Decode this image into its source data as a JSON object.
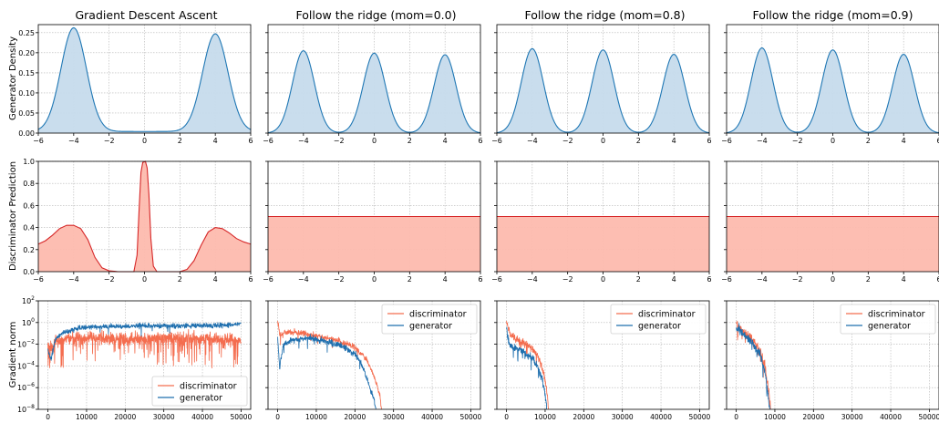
{
  "colors": {
    "density_line": "#1f77b4",
    "density_fill": "#c6dbec",
    "disc_line": "#d62728",
    "disc_fill": "#fdbbae",
    "grad_disc": "#f46d4f",
    "grad_gen": "#1f6fae",
    "grid": "#b5b5b5"
  },
  "figure": {
    "titles": [
      "Gradient Descent Ascent",
      "Follow the ridge (mom=0.0)",
      "Follow the ridge (mom=0.8)",
      "Follow the ridge (mom=0.9)"
    ],
    "row_ylabels": [
      "Generator Density",
      "Discriminator Prediction",
      "Gradient norm"
    ],
    "legend": [
      "discriminator",
      "generator"
    ]
  },
  "chart_data": [
    {
      "type": "area",
      "row": "Generator Density",
      "xlim": [
        -6,
        6
      ],
      "ylim": [
        0,
        0.27
      ],
      "xticks": [
        -6,
        -4,
        -2,
        0,
        2,
        4,
        6
      ],
      "xtick_labels": [
        "−6",
        "−4",
        "−2",
        "0",
        "2",
        "4",
        "6"
      ],
      "yticks": [
        0,
        0.05,
        0.1,
        0.15,
        0.2,
        0.25
      ],
      "ytick_labels": [
        "0.00",
        "0.05",
        "0.10",
        "0.15",
        "0.20",
        "0.25"
      ],
      "grid": true,
      "panels": [
        {
          "title": "Gradient Descent Ascent",
          "peaks": [
            {
              "center": -4,
              "height": 0.258,
              "sd": 0.72
            },
            {
              "center": 4,
              "height": 0.243,
              "sd": 0.72
            }
          ],
          "baseline": 0.004
        },
        {
          "title": "Follow the ridge (mom=0.0)",
          "peaks": [
            {
              "center": -4,
              "height": 0.205,
              "sd": 0.62
            },
            {
              "center": 0,
              "height": 0.199,
              "sd": 0.62
            },
            {
              "center": 4,
              "height": 0.195,
              "sd": 0.62
            }
          ],
          "baseline": 0.0
        },
        {
          "title": "Follow the ridge (mom=0.8)",
          "peaks": [
            {
              "center": -4,
              "height": 0.21,
              "sd": 0.62
            },
            {
              "center": 0,
              "height": 0.207,
              "sd": 0.62
            },
            {
              "center": 4,
              "height": 0.196,
              "sd": 0.62
            }
          ],
          "baseline": 0.0
        },
        {
          "title": "Follow the ridge (mom=0.9)",
          "peaks": [
            {
              "center": -4,
              "height": 0.212,
              "sd": 0.62
            },
            {
              "center": 0,
              "height": 0.207,
              "sd": 0.62
            },
            {
              "center": 4,
              "height": 0.196,
              "sd": 0.62
            }
          ],
          "baseline": 0.0
        }
      ]
    },
    {
      "type": "area",
      "row": "Discriminator Prediction",
      "xlim": [
        -6,
        6
      ],
      "ylim": [
        0,
        1.0
      ],
      "xticks": [
        -6,
        -4,
        -2,
        0,
        2,
        4,
        6
      ],
      "xtick_labels": [
        "−6",
        "−4",
        "−2",
        "0",
        "2",
        "4",
        "6"
      ],
      "yticks": [
        0,
        0.2,
        0.4,
        0.6,
        0.8,
        1.0
      ],
      "ytick_labels": [
        "0.0",
        "0.2",
        "0.4",
        "0.6",
        "0.8",
        "1.0"
      ],
      "grid": true,
      "panels": [
        {
          "title": "Gradient Descent Ascent",
          "points": [
            [
              -6,
              0.25
            ],
            [
              -5.6,
              0.28
            ],
            [
              -5.2,
              0.33
            ],
            [
              -4.8,
              0.39
            ],
            [
              -4.4,
              0.42
            ],
            [
              -4.0,
              0.42
            ],
            [
              -3.6,
              0.39
            ],
            [
              -3.2,
              0.29
            ],
            [
              -2.8,
              0.13
            ],
            [
              -2.4,
              0.035
            ],
            [
              -2.0,
              0.008
            ],
            [
              -1.5,
              0.0
            ],
            [
              -0.6,
              0.0
            ],
            [
              -0.42,
              0.15
            ],
            [
              -0.3,
              0.58
            ],
            [
              -0.2,
              0.9
            ],
            [
              -0.1,
              0.99
            ],
            [
              0.05,
              1.0
            ],
            [
              0.15,
              0.94
            ],
            [
              0.25,
              0.7
            ],
            [
              0.36,
              0.3
            ],
            [
              0.5,
              0.05
            ],
            [
              0.7,
              0.0
            ],
            [
              2.0,
              0.0
            ],
            [
              2.4,
              0.02
            ],
            [
              2.8,
              0.1
            ],
            [
              3.2,
              0.24
            ],
            [
              3.6,
              0.36
            ],
            [
              4.0,
              0.4
            ],
            [
              4.4,
              0.39
            ],
            [
              4.8,
              0.35
            ],
            [
              5.2,
              0.3
            ],
            [
              5.6,
              0.27
            ],
            [
              6.0,
              0.25
            ]
          ]
        },
        {
          "title": "Follow the ridge (mom=0.0)",
          "points": [
            [
              -6,
              0.5
            ],
            [
              6,
              0.5
            ]
          ]
        },
        {
          "title": "Follow the ridge (mom=0.8)",
          "points": [
            [
              -6,
              0.5
            ],
            [
              6,
              0.5
            ]
          ]
        },
        {
          "title": "Follow the ridge (mom=0.9)",
          "points": [
            [
              -6,
              0.5
            ],
            [
              6,
              0.5
            ]
          ]
        }
      ]
    },
    {
      "type": "line",
      "row": "Gradient norm",
      "yscale": "log",
      "xlim": [
        -2500,
        52500
      ],
      "ylim_exp": [
        -8,
        2
      ],
      "xticks": [
        0,
        10000,
        20000,
        30000,
        40000,
        50000
      ],
      "xtick_labels": [
        "0",
        "10000",
        "20000",
        "30000",
        "40000",
        "50000"
      ],
      "yticks_exp": [
        -8,
        -6,
        -4,
        -2,
        0,
        2
      ],
      "ytick_labels": [
        "10",
        "10",
        "10",
        "10",
        "10",
        "10"
      ],
      "ytick_exponents": [
        "−8",
        "−6",
        "−4",
        "−2",
        "0",
        "2"
      ],
      "grid": true,
      "legend_position": [
        "lower right",
        "upper right",
        "upper right",
        "upper right"
      ],
      "panels": [
        {
          "title": "Gradient Descent Ascent",
          "series": [
            {
              "name": "discriminator",
              "log10_envelope": [
                [
                  0,
                  -2.3
                ],
                [
                  1000,
                  -2.2
                ],
                [
                  2500,
                  -1.7
                ],
                [
                  5000,
                  -1.5
                ],
                [
                  10000,
                  -1.4
                ],
                [
                  20000,
                  -1.5
                ],
                [
                  30000,
                  -1.5
                ],
                [
                  40000,
                  -1.5
                ],
                [
                  50000,
                  -1.7
                ]
              ],
              "noise": 0.6,
              "dip_prob": 0.1,
              "dip_size": 1.5
            },
            {
              "name": "generator",
              "log10_envelope": [
                [
                  0,
                  -2.6
                ],
                [
                  800,
                  -3.4
                ],
                [
                  2000,
                  -1.5
                ],
                [
                  4000,
                  -0.9
                ],
                [
                  8000,
                  -0.5
                ],
                [
                  15000,
                  -0.35
                ],
                [
                  25000,
                  -0.3
                ],
                [
                  35000,
                  -0.3
                ],
                [
                  45000,
                  -0.25
                ],
                [
                  50000,
                  -0.1
                ]
              ],
              "noise": 0.22,
              "dip_prob": 0.01,
              "dip_size": 0.8
            }
          ]
        },
        {
          "title": "Follow the ridge (mom=0.0)",
          "series": [
            {
              "name": "discriminator",
              "log10_envelope": [
                [
                  0,
                  0.0
                ],
                [
                  600,
                  -1.2
                ],
                [
                  2000,
                  -0.9
                ],
                [
                  5000,
                  -0.9
                ],
                [
                  10000,
                  -1.2
                ],
                [
                  15000,
                  -1.6
                ],
                [
                  20000,
                  -2.3
                ],
                [
                  23000,
                  -3.4
                ],
                [
                  25000,
                  -5.0
                ],
                [
                  26500,
                  -6.8
                ],
                [
                  27000,
                  -8.5
                ]
              ],
              "noise": 0.25,
              "dip_prob": 0.02,
              "dip_size": 0.6
            },
            {
              "name": "generator",
              "log10_envelope": [
                [
                  0,
                  -1.3
                ],
                [
                  500,
                  -4.2
                ],
                [
                  1500,
                  -2.0
                ],
                [
                  4000,
                  -1.6
                ],
                [
                  8000,
                  -1.4
                ],
                [
                  12000,
                  -1.7
                ],
                [
                  17000,
                  -2.2
                ],
                [
                  20000,
                  -2.9
                ],
                [
                  22000,
                  -4.0
                ],
                [
                  23500,
                  -5.6
                ],
                [
                  25000,
                  -7.2
                ],
                [
                  25600,
                  -8.5
                ]
              ],
              "noise": 0.25,
              "dip_prob": 0.03,
              "dip_size": 0.6
            }
          ]
        },
        {
          "title": "Follow the ridge (mom=0.8)",
          "series": [
            {
              "name": "discriminator",
              "log10_envelope": [
                [
                  0,
                  0.0
                ],
                [
                  1000,
                  -1.2
                ],
                [
                  3000,
                  -1.6
                ],
                [
                  6000,
                  -2.2
                ],
                [
                  8000,
                  -3.0
                ],
                [
                  9500,
                  -4.4
                ],
                [
                  10500,
                  -6.5
                ],
                [
                  11000,
                  -8.5
                ]
              ],
              "noise": 0.35,
              "dip_prob": 0.03,
              "dip_size": 0.7
            },
            {
              "name": "generator",
              "log10_envelope": [
                [
                  0,
                  -0.5
                ],
                [
                  800,
                  -2.2
                ],
                [
                  3000,
                  -2.4
                ],
                [
                  6000,
                  -3.0
                ],
                [
                  8000,
                  -4.0
                ],
                [
                  9500,
                  -5.6
                ],
                [
                  10200,
                  -7.2
                ],
                [
                  10500,
                  -8.5
                ]
              ],
              "noise": 0.35,
              "dip_prob": 0.04,
              "dip_size": 0.7
            }
          ]
        },
        {
          "title": "Follow the ridge (mom=0.9)",
          "series": [
            {
              "name": "discriminator",
              "log10_envelope": [
                [
                  0,
                  -0.2
                ],
                [
                  1500,
                  -0.7
                ],
                [
                  4000,
                  -1.5
                ],
                [
                  6000,
                  -2.5
                ],
                [
                  7500,
                  -4.2
                ],
                [
                  8500,
                  -6.5
                ],
                [
                  9000,
                  -8.5
                ]
              ],
              "noise": 0.4,
              "dip_prob": 0.04,
              "dip_size": 0.8
            },
            {
              "name": "generator",
              "log10_envelope": [
                [
                  0,
                  -0.3
                ],
                [
                  1500,
                  -1.0
                ],
                [
                  4000,
                  -1.8
                ],
                [
                  6000,
                  -2.8
                ],
                [
                  7500,
                  -4.6
                ],
                [
                  8300,
                  -6.8
                ],
                [
                  8800,
                  -8.5
                ]
              ],
              "noise": 0.4,
              "dip_prob": 0.05,
              "dip_size": 0.8
            }
          ]
        }
      ]
    }
  ]
}
